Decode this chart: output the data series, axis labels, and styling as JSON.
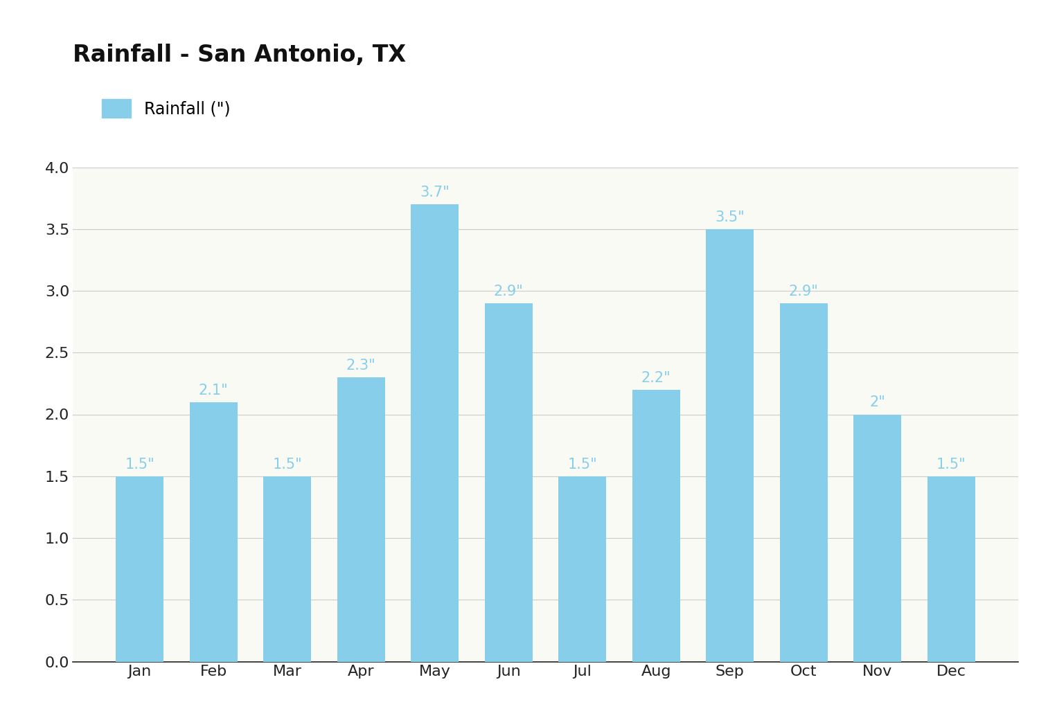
{
  "title": "Rainfall - San Antonio, TX",
  "legend_label": "Rainfall (\")",
  "months": [
    "Jan",
    "Feb",
    "Mar",
    "Apr",
    "May",
    "Jun",
    "Jul",
    "Aug",
    "Sep",
    "Oct",
    "Nov",
    "Dec"
  ],
  "values": [
    1.5,
    2.1,
    1.5,
    2.3,
    3.7,
    2.9,
    1.5,
    2.2,
    3.5,
    2.9,
    2.0,
    1.5
  ],
  "bar_color": "#87CEEB",
  "label_color": "#87CEEB",
  "background_color": "#FFFFFF",
  "plot_bg_color": "#FAFAF5",
  "ylim": [
    0,
    4.0
  ],
  "yticks": [
    0.0,
    0.5,
    1.0,
    1.5,
    2.0,
    2.5,
    3.0,
    3.5,
    4.0
  ],
  "title_fontsize": 24,
  "tick_fontsize": 16,
  "legend_fontsize": 17,
  "value_label_fontsize": 15
}
